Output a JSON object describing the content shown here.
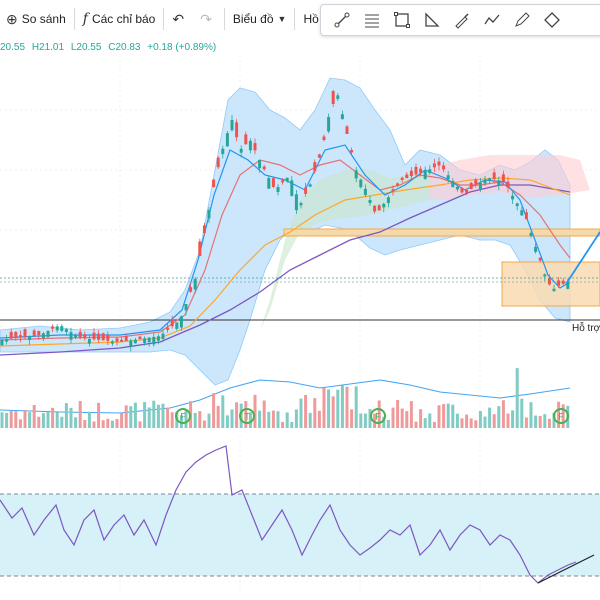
{
  "toolbar": {
    "compare_label": "So sánh",
    "indicators_label": "Các chỉ báo",
    "chart_label": "Biểu đồ",
    "profile_label": "Hồ sơ"
  },
  "ohlc": {
    "open": "20.55",
    "high": "H21.01",
    "low": "L20.55",
    "close": "C20.83",
    "change": "+0.18 (+0.89%)"
  },
  "annotations": {
    "support_label": "Hỗ trợ",
    "event_badge_f": "F",
    "event_badge_t": "T"
  },
  "colors": {
    "up": "#26a69a",
    "down": "#ef5350",
    "bollinger_fill": "#bbdefb",
    "ma_blue": "#2196f3",
    "ma_red": "#e57373",
    "ma_orange": "#ffa726",
    "ma_purple": "#7e57c2",
    "rsi_line": "#7e57c2",
    "rsi_band": "#d6f1f7",
    "resistance_zone": "#f5d9a8",
    "event_badge": "#4caf50"
  },
  "chart_data": {
    "type": "candlestick",
    "price_panel": {
      "series": [
        "Bollinger Bands",
        "Moving Averages",
        "Price"
      ],
      "horizontal_levels": [
        14.0,
        19.5
      ],
      "zone_range": [
        17.0,
        18.3
      ]
    },
    "volume_panel": {
      "series": [
        "Volume",
        "Volume MA"
      ]
    },
    "rsi_panel": {
      "series": [
        "RSI"
      ],
      "band": [
        30,
        70
      ]
    }
  }
}
